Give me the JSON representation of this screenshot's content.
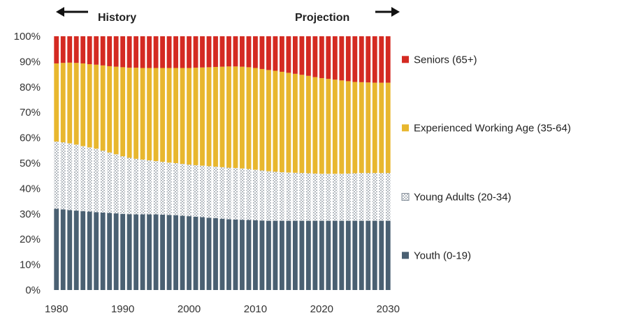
{
  "chart_data": {
    "type": "bar",
    "stacked": true,
    "orientation": "vertical",
    "header": {
      "history_label": "History",
      "projection_label": "Projection"
    },
    "x": [
      1980,
      1981,
      1982,
      1983,
      1984,
      1985,
      1986,
      1987,
      1988,
      1989,
      1990,
      1991,
      1992,
      1993,
      1994,
      1995,
      1996,
      1997,
      1998,
      1999,
      2000,
      2001,
      2002,
      2003,
      2004,
      2005,
      2006,
      2007,
      2008,
      2009,
      2010,
      2011,
      2012,
      2013,
      2014,
      2015,
      2016,
      2017,
      2018,
      2019,
      2020,
      2021,
      2022,
      2023,
      2024,
      2025,
      2026,
      2027,
      2028,
      2029,
      2030
    ],
    "x_tick_labels": [
      "1980",
      "1990",
      "2000",
      "2010",
      "2020",
      "2030"
    ],
    "y_tick_labels": [
      "0%",
      "10%",
      "20%",
      "30%",
      "40%",
      "50%",
      "60%",
      "70%",
      "80%",
      "90%",
      "100%"
    ],
    "ylim": [
      0,
      100
    ],
    "series": [
      {
        "name": "Youth (0-19)",
        "color": "#4a6072",
        "pattern": "solid",
        "values": [
          32,
          31.8,
          31.5,
          31.3,
          31.1,
          30.9,
          30.7,
          30.5,
          30.4,
          30.2,
          30,
          29.9,
          29.8,
          29.8,
          29.8,
          29.8,
          29.7,
          29.6,
          29.5,
          29.3,
          29.1,
          28.9,
          28.7,
          28.5,
          28.3,
          28.1,
          27.9,
          27.8,
          27.7,
          27.6,
          27.5,
          27.4,
          27.3,
          27.3,
          27.3,
          27.3,
          27.3,
          27.3,
          27.3,
          27.3,
          27.3,
          27.3,
          27.3,
          27.3,
          27.3,
          27.3,
          27.3,
          27.3,
          27.3,
          27.3,
          27.3
        ]
      },
      {
        "name": "Young Adults (20-34)",
        "color": "#9aa3ad",
        "pattern": "dotted",
        "values": [
          26.5,
          26.4,
          26.3,
          26,
          25.6,
          25.3,
          25,
          24.4,
          23.8,
          23.3,
          22.7,
          22.2,
          21.9,
          21.6,
          21.3,
          21,
          20.8,
          20.6,
          20.5,
          20.4,
          20.3,
          20.3,
          20.3,
          20.3,
          20.3,
          20.3,
          20.3,
          20.3,
          20.2,
          20.1,
          19.9,
          19.7,
          19.5,
          19.3,
          19.1,
          19,
          18.9,
          18.8,
          18.7,
          18.6,
          18.5,
          18.5,
          18.5,
          18.5,
          18.6,
          18.7,
          18.8,
          18.8,
          18.8,
          18.8,
          18.8
        ]
      },
      {
        "name": "Experienced Working Age (35-64)",
        "color": "#e8b72e",
        "pattern": "solid",
        "values": [
          30.8,
          31.3,
          31.8,
          32.2,
          32.6,
          32.8,
          33.1,
          33.6,
          34,
          34.5,
          35.1,
          35.5,
          35.9,
          36.1,
          36.4,
          36.7,
          37,
          37.3,
          37.5,
          37.8,
          38.1,
          38.4,
          38.7,
          39,
          39.3,
          39.6,
          39.9,
          40,
          40.1,
          40.1,
          40.1,
          40,
          39.9,
          39.8,
          39.6,
          39.3,
          39,
          38.7,
          38.4,
          38,
          37.7,
          37.4,
          37.1,
          36.8,
          36.4,
          36,
          35.8,
          35.7,
          35.6,
          35.6,
          35.6
        ]
      },
      {
        "name": "Seniors (65+)",
        "color": "#d42a22",
        "pattern": "solid",
        "values": [
          10.7,
          10.5,
          10.4,
          10.5,
          10.7,
          11,
          11.2,
          11.5,
          11.8,
          12,
          12.2,
          12.4,
          12.4,
          12.5,
          12.5,
          12.5,
          12.5,
          12.5,
          12.5,
          12.5,
          12.5,
          12.4,
          12.3,
          12.2,
          12.1,
          12,
          11.9,
          11.9,
          12,
          12.2,
          12.5,
          12.9,
          13.3,
          13.6,
          14,
          14.4,
          14.8,
          15.2,
          15.6,
          16.1,
          16.5,
          16.8,
          17.1,
          17.4,
          17.7,
          18,
          18.1,
          18.2,
          18.3,
          18.3,
          18.3
        ]
      }
    ]
  }
}
